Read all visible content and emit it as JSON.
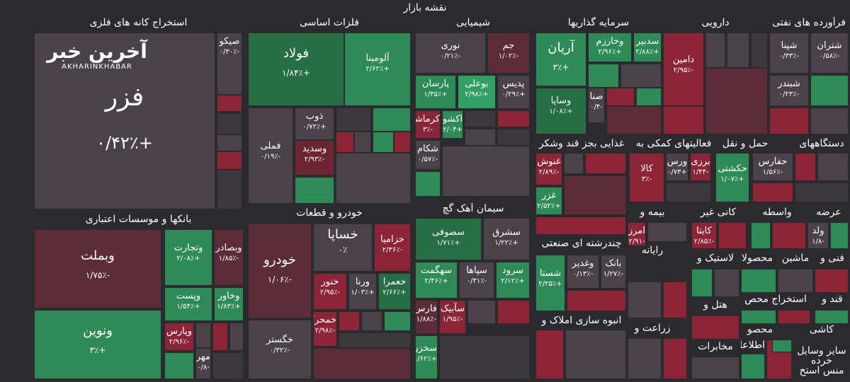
{
  "title": "نقشه بازار",
  "logo": {
    "fa": "آخرین خبر",
    "en": "AKHARINKHABAR"
  },
  "sections": {
    "s1": "استخراج کانه های فلزی",
    "s2": "فلزات اساسی",
    "s3": "شیمیایی",
    "s4": "سرمایه گذاریها",
    "s5": "دارویی",
    "s6": "فرآورده های نفتی",
    "s7": "بانکها و موسسات اعتباری",
    "s8": "خودرو و قطعات",
    "s9": "سیمان آهک گچ",
    "s10": "غذایی بجز قند وشکر",
    "s11": "فعالیتهای کمکی به",
    "s12": "حمل و نقل",
    "s13": "دستگاههای",
    "s14": "بیمه و",
    "s15": "کانی غیر",
    "s16": "واسطه",
    "s17": "عرضه",
    "s18": "چندرشته ای صنعتی",
    "s19": "رایانه",
    "s20": "لاستیک و",
    "s21": "محصولا",
    "s22": "ماشین",
    "s23": "فنی و",
    "s24": "انبوه سازی املاک و",
    "s25": "هتل و",
    "s26": "استخراج محص",
    "s27": "قند و",
    "s28": "زراعت و",
    "s29": "محصو",
    "s30": "کاشی",
    "s31": "مخابرات",
    "s32": "اطلاعا",
    "s33": "سایر وسایل",
    "s34": "خرده",
    "s35": "منس استخ"
  },
  "tiles": {
    "fazar": {
      "name": "فزر",
      "pct": "+۰/۴۲٪"
    },
    "sekou": {
      "name": "صیکو",
      "pct": "-۰/۳۰٪"
    },
    "foulad": {
      "name": "فولاد",
      "pct": "+۱/۸۴٪"
    },
    "aluminia": {
      "name": "آلومینا",
      "pct": "+۲/۶۲٪"
    },
    "famli": {
      "name": "فملی",
      "pct": "-۰/۱۹٪"
    },
    "zob": {
      "name": "ذوب",
      "pct": "+۰/۷۲٪"
    },
    "vasdid": {
      "name": "وسدید",
      "pct": "-۲/۹۳٪"
    },
    "nouri": {
      "name": "نوری",
      "pct": "-۰/۲۱٪"
    },
    "jam": {
      "name": "جم",
      "pct": "-۱/۰۲٪"
    },
    "parsan": {
      "name": "پارسان",
      "pct": "+۱/۳۵٪"
    },
    "bouali": {
      "name": "بوعلی",
      "pct": "+۲/۹۸٪"
    },
    "pedis": {
      "name": "پدیس",
      "pct": "+۰/۲۹٪"
    },
    "karamasha": {
      "name": "کرماشا",
      "pct": "-۳٪"
    },
    "kashou": {
      "name": "اکشو",
      "pct": "+۲/۰۴"
    },
    "shekam": {
      "name": "شکام",
      "pct": "-۰/۵۷٪"
    },
    "arian": {
      "name": "آریان",
      "pct": "+۳٪"
    },
    "kharazm": {
      "name": "وخارزم",
      "pct": "+۲/۹۶٪"
    },
    "sadbir": {
      "name": "سدبیر",
      "pct": "+۲/۸۸٪"
    },
    "vasapa": {
      "name": "وساپا",
      "pct": "+۱/۰۸٪"
    },
    "sana": {
      "name": "صنا",
      "pct": "-۰/۴"
    },
    "damin": {
      "name": "دامین",
      "pct": "-۲/۹۵٪"
    },
    "shepna": {
      "name": "شپنا",
      "pct": "-۰/۳۳٪"
    },
    "shatran": {
      "name": "شتران",
      "pct": "-۰/۵۸٪"
    },
    "shebandar": {
      "name": "شبندر",
      "pct": "-۰/۲۳٪"
    },
    "vabmelat": {
      "name": "وبملت",
      "pct": "-۱/۷۵٪"
    },
    "vanovin": {
      "name": "ونوین",
      "pct": "+۳٪"
    },
    "vtejarat": {
      "name": "وتجارت",
      "pct": "+۲/۰۸٪"
    },
    "vbsader": {
      "name": "وبصادر",
      "pct": "-۱/۸۵٪"
    },
    "vpost": {
      "name": "وپست",
      "pct": "+۱/۵۴٪"
    },
    "vkhavar": {
      "name": "وخاور",
      "pct": "+۱/۸۳٪"
    },
    "vpars": {
      "name": "وپارس",
      "pct": "-۲/۹۶٪"
    },
    "mehr": {
      "name": "مهر",
      "pct": "-۰/۸"
    },
    "khodro": {
      "name": "خودرو",
      "pct": "-۱/۰۶٪"
    },
    "khaspa": {
      "name": "خساپا",
      "pct": "۰٪"
    },
    "khazamia": {
      "name": "خزامیا",
      "pct": "-۲/۳۶٪"
    },
    "khanvar": {
      "name": "خنور",
      "pct": "-۲/۹۵٪"
    },
    "verna": {
      "name": "ورنا",
      "pct": "+۱/۰۳٪"
    },
    "khamra": {
      "name": "خعمرا",
      "pct": "+۲/۶۶٪"
    },
    "khmoharakeh": {
      "name": "خمحرکه",
      "pct": "-۲/۹۸٪"
    },
    "khegostar": {
      "name": "خگستر",
      "pct": "-۰/۳۲٪"
    },
    "sasoufi": {
      "name": "سصوفی",
      "pct": "+۱/۷۱٪"
    },
    "sashargh": {
      "name": "سشرق",
      "pct": "+۱/۲۲٪"
    },
    "sahegmat": {
      "name": "سهگمت",
      "pct": "+۲/۴۶٪"
    },
    "sapaha": {
      "name": "سپاها",
      "pct": "-۰/۳۱٪"
    },
    "sarvod": {
      "name": "سرود",
      "pct": "+۲/۱۲٪"
    },
    "fars": {
      "name": "فارس",
      "pct": "-۱/۸۸٪"
    },
    "abik": {
      "name": "سآبیک",
      "pct": "-۱/۹۵٪"
    },
    "sakhazar": {
      "name": "سخزر",
      "pct": "+۱/۶۲٪"
    },
    "ghanoush": {
      "name": "غنوش",
      "pct": "-۲/۸۹٪"
    },
    "ghazar": {
      "name": "غزر",
      "pct": "+۲/۵۲٪"
    },
    "kala": {
      "name": "کالا",
      "pct": "-۳٪"
    },
    "vars": {
      "name": "ورس",
      "pct": "+۰/۷۳"
    },
    "barzi": {
      "name": "برزی",
      "pct": "-۱/۴۴"
    },
    "hakashti": {
      "name": "حکشتی",
      "pct": "+۱/۰۷٪"
    },
    "hafars": {
      "name": "حفارس",
      "pct": "-۱/۵۶٪"
    },
    "amerz": {
      "name": "امرز",
      "pct": "-۲/۹۱"
    },
    "kaita": {
      "name": "کایتا",
      "pct": "-۲/۸۵٪"
    },
    "vald": {
      "name": "ولد",
      "pct": "-۱/۸"
    },
    "shasta": {
      "name": "شستا",
      "pct": "+۲/۲۵٪"
    },
    "vghadir": {
      "name": "وغدیر",
      "pct": "-۰/۱۳٪"
    },
    "bank": {
      "name": "بانک",
      "pct": "-۱/۲۷٪"
    }
  }
}
